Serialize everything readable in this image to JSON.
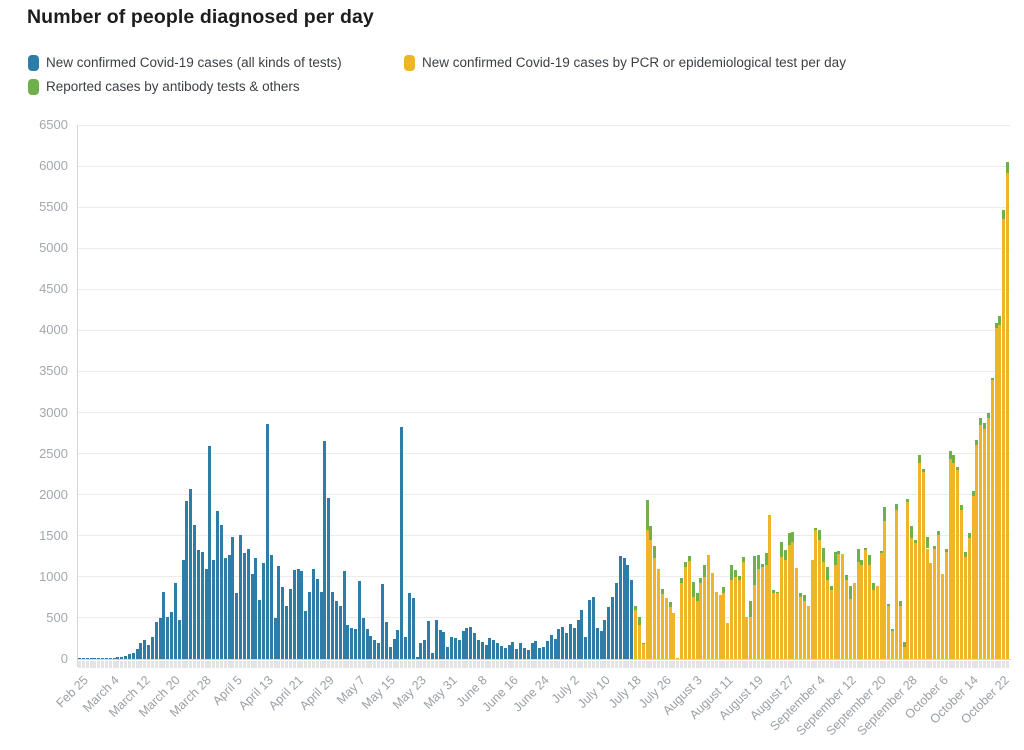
{
  "title": "Number of people diagnosed per day",
  "legend": {
    "items": [
      {
        "label": "New confirmed Covid-19 cases (all kinds of tests)",
        "color": "#2e7da8"
      },
      {
        "label": "New confirmed Covid-19 cases by PCR or epidemiological test per day",
        "color": "#f0b429"
      },
      {
        "label": "Reported cases by antibody tests & others",
        "color": "#70b04b"
      }
    ]
  },
  "chart_data": {
    "type": "bar",
    "stacked": true,
    "title": "Number of people diagnosed per day",
    "xlabel": "",
    "ylabel": "",
    "ylim": [
      0,
      6500
    ],
    "grid": true,
    "legend_position": "top-left",
    "y_ticks": [
      0,
      500,
      1000,
      1500,
      2000,
      2500,
      3000,
      3500,
      4000,
      4500,
      5000,
      5500,
      6000,
      6500
    ],
    "x_tick_labels": [
      "Feb 25",
      "March 4",
      "March 12",
      "March 20",
      "March 28",
      "April 5",
      "April 13",
      "April 21",
      "April 29",
      "May 7",
      "May 15",
      "May 23",
      "May 31",
      "June 8",
      "June 16",
      "June 24",
      "July 2",
      "July 10",
      "July 18",
      "July 26",
      "August 3",
      "August 11",
      "August 19",
      "August 27",
      "September 4",
      "September 12",
      "September 20",
      "September 28",
      "October 6",
      "October 14",
      "October 22"
    ],
    "x_tick_every": 8,
    "total_days": 243,
    "date_range": "Feb 25 - October 24",
    "pcr_start_index": 145,
    "series": [
      {
        "name": "New confirmed Covid-19 cases (all kinds of tests)",
        "color": "#2e7da8",
        "values": [
          3,
          2,
          4,
          5,
          6,
          8,
          10,
          12,
          10,
          15,
          20,
          30,
          40,
          55,
          75,
          120,
          190,
          230,
          170,
          270,
          455,
          495,
          820,
          515,
          575,
          920,
          475,
          1205,
          1925,
          2065,
          1630,
          1330,
          1305,
          1090,
          2590,
          1205,
          1800,
          1630,
          1225,
          1265,
          1490,
          800,
          1510,
          1285,
          1345,
          1040,
          1225,
          720,
          1165,
          2860,
          1265,
          505,
          1130,
          880,
          640,
          855,
          1080,
          1095,
          1075,
          585,
          810,
          1095,
          975,
          810,
          2650,
          1960,
          810,
          700,
          650,
          1070,
          420,
          380,
          370,
          950,
          500,
          360,
          280,
          230,
          190,
          910,
          455,
          145,
          240,
          350,
          2820,
          265,
          800,
          745,
          30,
          190,
          230,
          465,
          70,
          475,
          355,
          330,
          150,
          270,
          250,
          230,
          345,
          380,
          395,
          320,
          230,
          210,
          170,
          250,
          230,
          190,
          160,
          140,
          170,
          210,
          120,
          190,
          140,
          110,
          200,
          220,
          130,
          150,
          225,
          290,
          245,
          360,
          385,
          320,
          425,
          375,
          480,
          595,
          270,
          720,
          760,
          375,
          335,
          475,
          635,
          760,
          920,
          1255,
          1235,
          1145,
          960
        ]
      },
      {
        "name": "New confirmed Covid-19 cases by PCR or epidemiological test per day",
        "color": "#f0b429",
        "values": [
          600,
          415,
          180,
          1570,
          1450,
          1230,
          1090,
          790,
          740,
          630,
          560,
          15,
          920,
          1125,
          1190,
          760,
          700,
          920,
          1000,
          1265,
          1045,
          820,
          780,
          800,
          435,
          960,
          1000,
          960,
          1185,
          515,
          515,
          900,
          1100,
          1125,
          1145,
          1755,
          800,
          800,
          1245,
          1205,
          1390,
          1430,
          1105,
          760,
          700,
          640,
          1205,
          1570,
          1450,
          1185,
          960,
          840,
          1145,
          1280,
          1275,
          960,
          725,
          920,
          1185,
          1145,
          1325,
          1145,
          840,
          890,
          1295,
          1685,
          640,
          335,
          1815,
          640,
          150,
          1915,
          1470,
          1410,
          2390,
          2280,
          1345,
          1170,
          1335,
          1510,
          1040,
          1305,
          2430,
          2380,
          2300,
          1815,
          1245,
          1470,
          1990,
          2600,
          2850,
          2800,
          2930,
          3400,
          4030,
          4070,
          5350,
          5920
        ]
      },
      {
        "name": "Reported cases by antibody tests & others",
        "color": "#70b04b",
        "values": [
          50,
          95,
          20,
          360,
          170,
          140,
          0,
          60,
          0,
          60,
          0,
          0,
          60,
          60,
          60,
          180,
          100,
          60,
          140,
          0,
          0,
          0,
          0,
          80,
          0,
          185,
          80,
          45,
          60,
          0,
          185,
          355,
          165,
          35,
          150,
          0,
          40,
          20,
          185,
          120,
          140,
          120,
          0,
          40,
          80,
          0,
          0,
          20,
          120,
          165,
          165,
          50,
          160,
          30,
          0,
          60,
          160,
          0,
          160,
          60,
          25,
          120,
          80,
          0,
          25,
          170,
          30,
          30,
          75,
          60,
          60,
          30,
          150,
          40,
          90,
          30,
          145,
          0,
          40,
          50,
          0,
          30,
          100,
          100,
          40,
          60,
          60,
          60,
          60,
          60,
          80,
          70,
          60,
          20,
          60,
          100,
          110,
          130
        ]
      }
    ]
  }
}
